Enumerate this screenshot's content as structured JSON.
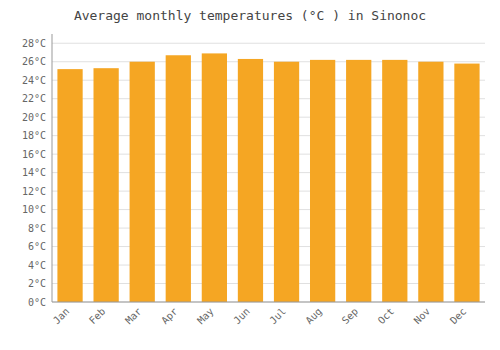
{
  "chart_data": {
    "type": "bar",
    "title": "Average monthly temperatures (°C ) in Sinonoc",
    "categories": [
      "Jan",
      "Feb",
      "Mar",
      "Apr",
      "May",
      "Jun",
      "Jul",
      "Aug",
      "Sep",
      "Oct",
      "Nov",
      "Dec"
    ],
    "values": [
      25.2,
      25.3,
      26.0,
      26.7,
      26.9,
      26.3,
      26.0,
      26.2,
      26.2,
      26.2,
      26.0,
      25.8
    ],
    "color": "#F5A623",
    "ylim": [
      0,
      29
    ],
    "yticks": [
      {
        "value": 0,
        "label": "0°C"
      },
      {
        "value": 2,
        "label": "2°C"
      },
      {
        "value": 4,
        "label": "4°C"
      },
      {
        "value": 6,
        "label": "6°C"
      },
      {
        "value": 8,
        "label": "8°C"
      },
      {
        "value": 10,
        "label": "10°C"
      },
      {
        "value": 12,
        "label": "12°C"
      },
      {
        "value": 14,
        "label": "14°C"
      },
      {
        "value": 16,
        "label": "16°C"
      },
      {
        "value": 18,
        "label": "18°C"
      },
      {
        "value": 20,
        "label": "20°C"
      },
      {
        "value": 22,
        "label": "22°C"
      },
      {
        "value": 24,
        "label": "24°C"
      },
      {
        "value": 26,
        "label": "26°C"
      },
      {
        "value": 28,
        "label": "28°C"
      }
    ],
    "grid": true
  }
}
